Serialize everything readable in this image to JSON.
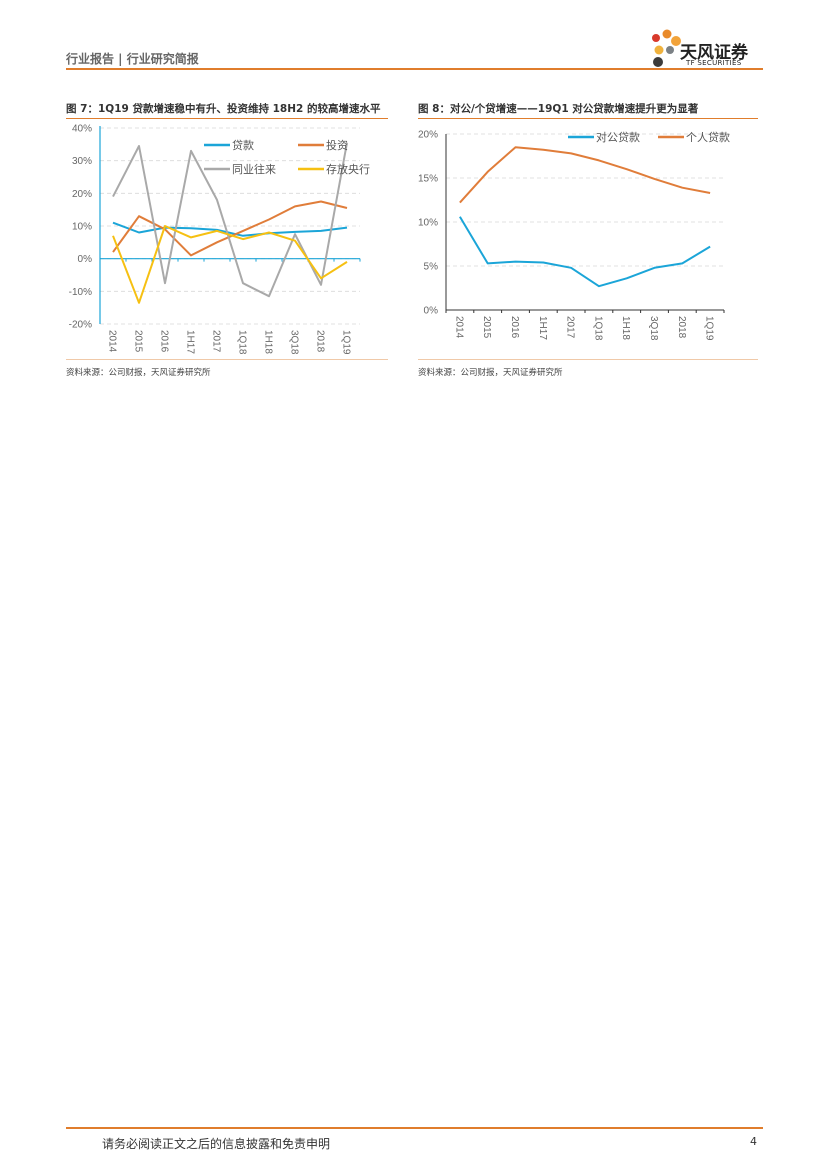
{
  "header": {
    "title": "行业报告 | 行业研究简报"
  },
  "logo": {
    "name_cn": "天风证券",
    "name_en": "TF SECURITIES"
  },
  "figures": [
    {
      "title": "图 7：1Q19 贷款增速稳中有升、投资维持 18H2 的较高增速水平",
      "source": "资料来源：公司财报，天风证券研究所"
    },
    {
      "title": "图 8：对公/个贷增速——19Q1 对公贷款增速提升更为显著",
      "source": "资料来源：公司财报，天风证券研究所"
    }
  ],
  "chart_data": [
    {
      "type": "line",
      "categories": [
        "2014",
        "2015",
        "2016",
        "1H17",
        "2017",
        "1Q18",
        "1H18",
        "3Q18",
        "2018",
        "1Q19"
      ],
      "ylim": [
        -20,
        40
      ],
      "yticks": [
        "40%",
        "30%",
        "20%",
        "10%",
        "0%",
        "-10%",
        "-20%"
      ],
      "ytick_values": [
        40,
        30,
        20,
        10,
        0,
        -10,
        -20
      ],
      "grid": true,
      "legend": "top-right",
      "series": [
        {
          "name": "贷款",
          "color": "#1ba5d8",
          "values": [
            11.0,
            8.0,
            9.5,
            9.3,
            8.8,
            7.0,
            7.8,
            8.2,
            8.5,
            9.5
          ]
        },
        {
          "name": "投资",
          "color": "#e07d3a",
          "values": [
            2.0,
            13.0,
            9.0,
            1.0,
            5.0,
            8.5,
            12.0,
            16.0,
            17.5,
            15.5
          ]
        },
        {
          "name": "同业往来",
          "color": "#a9a9a9",
          "values": [
            19.0,
            34.5,
            -7.5,
            33.0,
            18.0,
            -7.5,
            -11.5,
            7.5,
            -8.0,
            35.5
          ]
        },
        {
          "name": "存放央行",
          "color": "#f6c012",
          "values": [
            7.0,
            -13.5,
            10.0,
            6.5,
            8.5,
            6.0,
            8.0,
            5.5,
            -6.0,
            -1.0
          ]
        }
      ]
    },
    {
      "type": "line",
      "categories": [
        "2014",
        "2015",
        "2016",
        "1H17",
        "2017",
        "1Q18",
        "1H18",
        "3Q18",
        "2018",
        "1Q19"
      ],
      "ylim": [
        0,
        20
      ],
      "yticks": [
        "20%",
        "15%",
        "10%",
        "5%",
        "0%"
      ],
      "ytick_values": [
        20,
        15,
        10,
        5,
        0
      ],
      "grid": true,
      "legend": "top",
      "series": [
        {
          "name": "对公贷款",
          "color": "#1ba5d8",
          "values": [
            10.6,
            5.3,
            5.5,
            5.4,
            4.8,
            2.7,
            3.6,
            4.8,
            5.3,
            7.2
          ]
        },
        {
          "name": "个人贷款",
          "color": "#e07d3a",
          "values": [
            12.2,
            15.7,
            18.5,
            18.2,
            17.8,
            17.0,
            16.0,
            14.9,
            13.9,
            13.3
          ]
        }
      ]
    }
  ],
  "footer": {
    "disclaimer": "请务必阅读正文之后的信息披露和免责申明",
    "page": "4"
  }
}
